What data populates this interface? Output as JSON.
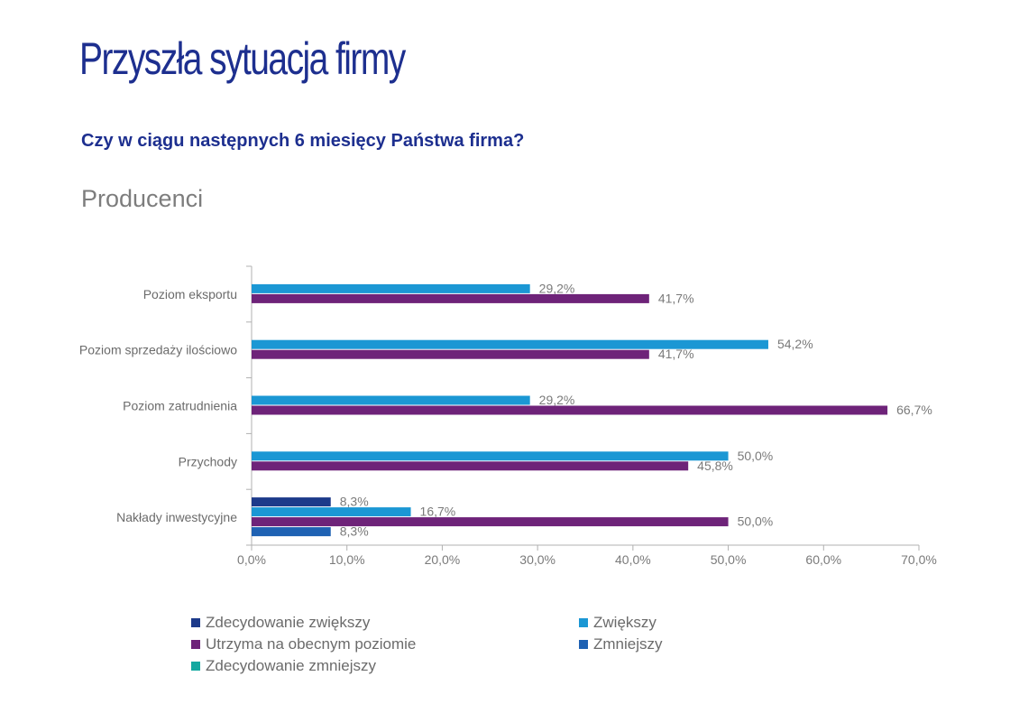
{
  "page": {
    "title": "Przyszła sytuacja firmy",
    "question": "Czy w ciągu następnych 6 miesięcy Państwa firma?",
    "segment": "Producenci"
  },
  "chart_data": {
    "type": "bar",
    "orientation": "horizontal",
    "categories": [
      "Poziom eksportu",
      "Poziom sprzedaży ilościowo",
      "Poziom zatrudnienia",
      "Przychody",
      "Nakłady inwestycyjne"
    ],
    "xlim": [
      0,
      70
    ],
    "xticks": [
      "0,0%",
      "10,0%",
      "20,0%",
      "30,0%",
      "40,0%",
      "50,0%",
      "60,0%",
      "70,0%"
    ],
    "legend_position": "bottom",
    "series": [
      {
        "name": "Zdecydowanie zwiększy",
        "color": "#1d3a8a",
        "values": [
          null,
          null,
          null,
          null,
          8.3
        ],
        "labels": [
          "",
          "",
          "",
          "",
          "8,3%"
        ]
      },
      {
        "name": "Zwiększy",
        "color": "#1b97d4",
        "values": [
          29.2,
          54.2,
          29.2,
          50.0,
          16.7
        ],
        "labels": [
          "29,2%",
          "54,2%",
          "29,2%",
          "50,0%",
          "16,7%"
        ]
      },
      {
        "name": "Utrzyma na obecnym poziomie",
        "color": "#6e2379",
        "values": [
          41.7,
          41.7,
          66.7,
          45.8,
          50.0
        ],
        "labels": [
          "41,7%",
          "41,7%",
          "66,7%",
          "45,8%",
          "50,0%"
        ]
      },
      {
        "name": "Zmniejszy",
        "color": "#1f62b3",
        "values": [
          null,
          null,
          null,
          null,
          8.3
        ],
        "labels": [
          "",
          "",
          "",
          "",
          "8,3%"
        ]
      },
      {
        "name": "Zdecydowanie zmniejszy",
        "color": "#14a8a0",
        "values": [
          null,
          null,
          null,
          null,
          null
        ],
        "labels": [
          "",
          "",
          "",
          "",
          ""
        ]
      }
    ]
  }
}
